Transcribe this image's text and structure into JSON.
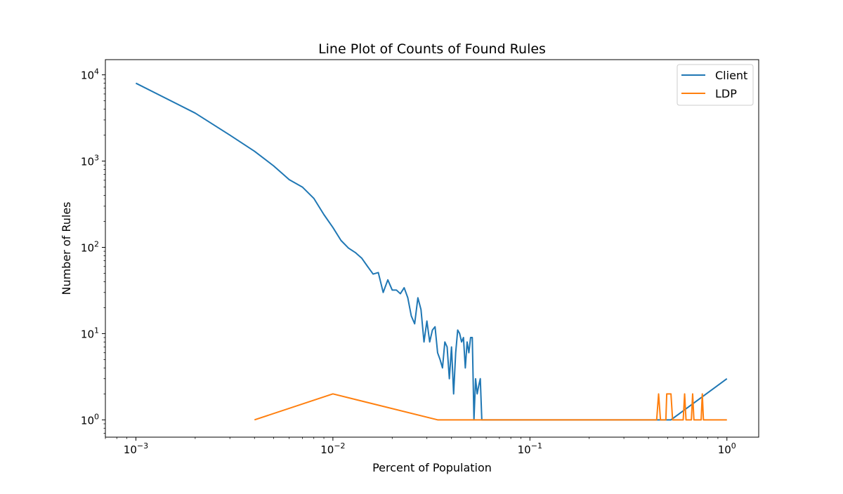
{
  "chart_data": {
    "type": "line",
    "title": "Line Plot of Counts of Found Rules",
    "xlabel": "Percent of Population",
    "ylabel": "Number of Rules",
    "xscale": "log",
    "yscale": "log",
    "xlim": [
      0.0007,
      1.45
    ],
    "ylim": [
      0.63,
      15000
    ],
    "grid": false,
    "legend_position": "top-right",
    "xticks": [
      {
        "value": 0.001,
        "base": "10",
        "exp": "−3"
      },
      {
        "value": 0.01,
        "base": "10",
        "exp": "−2"
      },
      {
        "value": 0.1,
        "base": "10",
        "exp": "−1"
      },
      {
        "value": 1,
        "base": "10",
        "exp": "0"
      }
    ],
    "yticks": [
      {
        "value": 1,
        "base": "10",
        "exp": "0"
      },
      {
        "value": 10,
        "base": "10",
        "exp": "1"
      },
      {
        "value": 100,
        "base": "10",
        "exp": "2"
      },
      {
        "value": 1000,
        "base": "10",
        "exp": "3"
      },
      {
        "value": 10000,
        "base": "10",
        "exp": "4"
      }
    ],
    "series": [
      {
        "name": "Client",
        "color": "#1f77b4",
        "points": [
          [
            0.001,
            8000
          ],
          [
            0.002,
            3600
          ],
          [
            0.003,
            2000
          ],
          [
            0.004,
            1300
          ],
          [
            0.005,
            880
          ],
          [
            0.006,
            610
          ],
          [
            0.007,
            500
          ],
          [
            0.008,
            370
          ],
          [
            0.009,
            240
          ],
          [
            0.01,
            170
          ],
          [
            0.011,
            120
          ],
          [
            0.012,
            98
          ],
          [
            0.013,
            87
          ],
          [
            0.014,
            75
          ],
          [
            0.015,
            60
          ],
          [
            0.016,
            49
          ],
          [
            0.017,
            51
          ],
          [
            0.018,
            30
          ],
          [
            0.019,
            42
          ],
          [
            0.02,
            32
          ],
          [
            0.021,
            32
          ],
          [
            0.022,
            29
          ],
          [
            0.023,
            34
          ],
          [
            0.024,
            26
          ],
          [
            0.025,
            16
          ],
          [
            0.026,
            13
          ],
          [
            0.027,
            26
          ],
          [
            0.028,
            19
          ],
          [
            0.029,
            8
          ],
          [
            0.03,
            14
          ],
          [
            0.031,
            8
          ],
          [
            0.032,
            11
          ],
          [
            0.033,
            12
          ],
          [
            0.034,
            6
          ],
          [
            0.035,
            5
          ],
          [
            0.036,
            4
          ],
          [
            0.037,
            8
          ],
          [
            0.038,
            7
          ],
          [
            0.039,
            3
          ],
          [
            0.04,
            7
          ],
          [
            0.041,
            2
          ],
          [
            0.042,
            6
          ],
          [
            0.043,
            11
          ],
          [
            0.044,
            10
          ],
          [
            0.045,
            8
          ],
          [
            0.046,
            9
          ],
          [
            0.047,
            4
          ],
          [
            0.048,
            8
          ],
          [
            0.049,
            6
          ],
          [
            0.05,
            9
          ],
          [
            0.051,
            9
          ],
          [
            0.052,
            1
          ],
          [
            0.053,
            3
          ],
          [
            0.054,
            2
          ],
          [
            0.055,
            2.5
          ],
          [
            0.056,
            3
          ],
          [
            0.057,
            1
          ],
          [
            0.1,
            1
          ],
          [
            0.2,
            1
          ],
          [
            0.3,
            1
          ],
          [
            0.4,
            1
          ],
          [
            0.52,
            1
          ],
          [
            1.0,
            3
          ]
        ]
      },
      {
        "name": "LDP",
        "color": "#ff7f0e",
        "points": [
          [
            0.004,
            1
          ],
          [
            0.01,
            2
          ],
          [
            0.034,
            1
          ],
          [
            0.1,
            1
          ],
          [
            0.2,
            1
          ],
          [
            0.3,
            1
          ],
          [
            0.44,
            1
          ],
          [
            0.45,
            2
          ],
          [
            0.46,
            1
          ],
          [
            0.49,
            1
          ],
          [
            0.495,
            2
          ],
          [
            0.52,
            2
          ],
          [
            0.53,
            1
          ],
          [
            0.6,
            1
          ],
          [
            0.61,
            2
          ],
          [
            0.62,
            1
          ],
          [
            0.66,
            1
          ],
          [
            0.67,
            2
          ],
          [
            0.68,
            1
          ],
          [
            0.74,
            1
          ],
          [
            0.75,
            2
          ],
          [
            0.76,
            1
          ],
          [
            1.0,
            1
          ]
        ]
      }
    ]
  }
}
